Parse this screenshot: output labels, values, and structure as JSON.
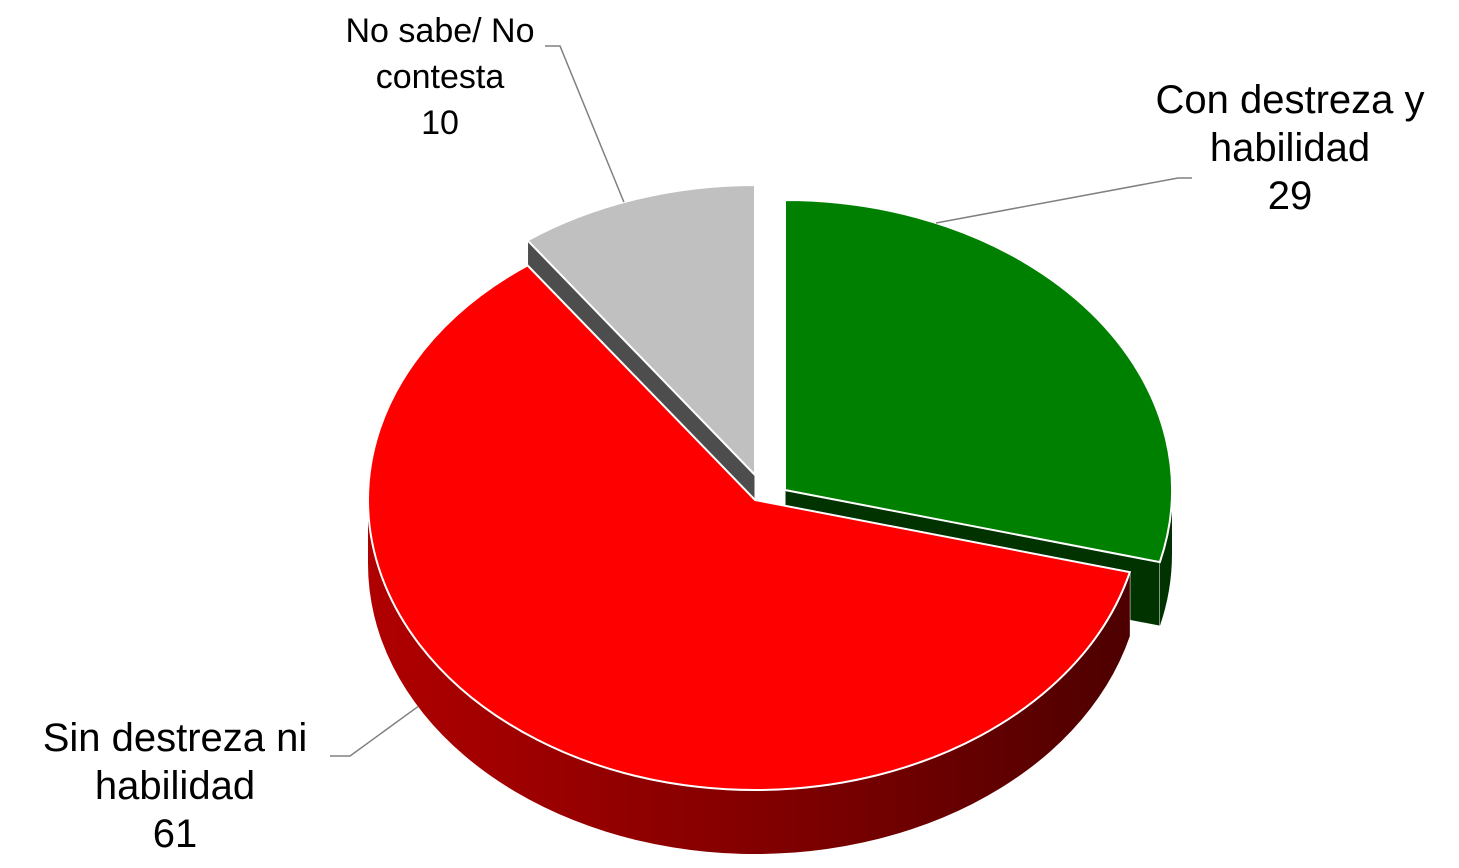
{
  "chart_data": {
    "type": "pie",
    "variant": "3d-exploded",
    "categories": [
      "Con destreza y habilidad",
      "Sin destreza ni habilidad",
      "No sabe/ No contesta"
    ],
    "values": [
      29,
      61,
      10
    ],
    "labels": [
      {
        "line1": "Con destreza y",
        "line2": "habilidad",
        "value": "29"
      },
      {
        "line1": "Sin destreza ni",
        "line2": "habilidad",
        "value": "61"
      },
      {
        "line1": "No sabe/ No",
        "line2": "contesta",
        "value": "10"
      }
    ],
    "colors": [
      "#008000",
      "#ff0000",
      "#c0c0c0"
    ],
    "side_colors": [
      "#003300",
      "#660000",
      "#4d4d4d"
    ],
    "title": "",
    "legend": "none"
  }
}
